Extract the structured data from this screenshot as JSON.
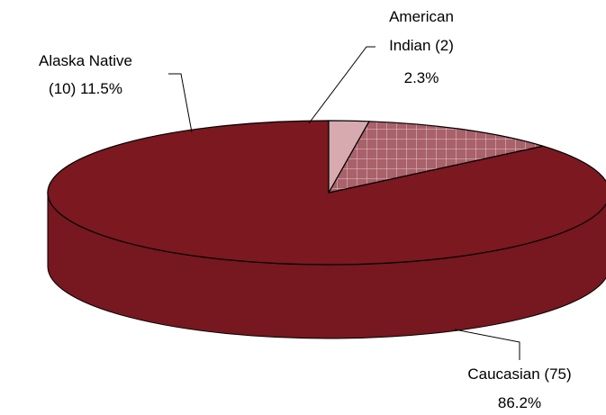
{
  "chart_data": {
    "type": "pie",
    "style": "3d",
    "slices": [
      {
        "name": "Caucasian",
        "count": 75,
        "percent": 86.2,
        "label_line1": "Caucasian (75)",
        "label_line2": "86.2%",
        "color": "#7b1820",
        "pattern": "solid"
      },
      {
        "name": "Alaska Native",
        "count": 10,
        "percent": 11.5,
        "label_line1": "Alaska Native",
        "label_line2": "(10) 11.5%",
        "color": "#a9616a",
        "pattern": "grid"
      },
      {
        "name": "American Indian",
        "count": 2,
        "percent": 2.3,
        "label_line1": "American",
        "label_line2": "Indian (2)",
        "label_line3": "2.3%",
        "color": "#d7aab0",
        "pattern": "solid"
      }
    ]
  }
}
